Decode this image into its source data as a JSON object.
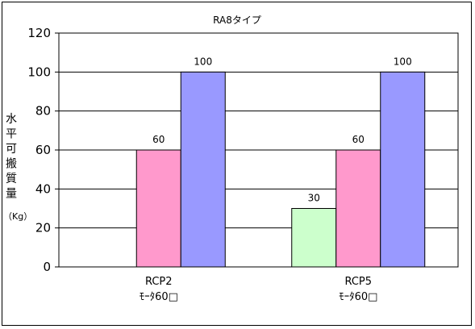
{
  "chart_data": {
    "type": "bar",
    "title": "RA8タイプ",
    "ylabel_chars": [
      "水",
      "平",
      "可",
      "搬",
      "質",
      "量"
    ],
    "yunit": "（Kg）",
    "ylim": [
      0,
      120
    ],
    "yticks": [
      0,
      20,
      40,
      60,
      80,
      100,
      120
    ],
    "grid": true,
    "legend": "none",
    "categories": [
      {
        "line1": "RCP2",
        "line2": "ﾓｰﾀ60□"
      },
      {
        "line1": "RCP5",
        "line2": "ﾓｰﾀ60□"
      }
    ],
    "series": [
      {
        "color": "#CCFFCC",
        "values": [
          null,
          30
        ]
      },
      {
        "color": "#FF99CC",
        "values": [
          60,
          60
        ]
      },
      {
        "color": "#9999FF",
        "values": [
          100,
          100
        ]
      }
    ]
  }
}
